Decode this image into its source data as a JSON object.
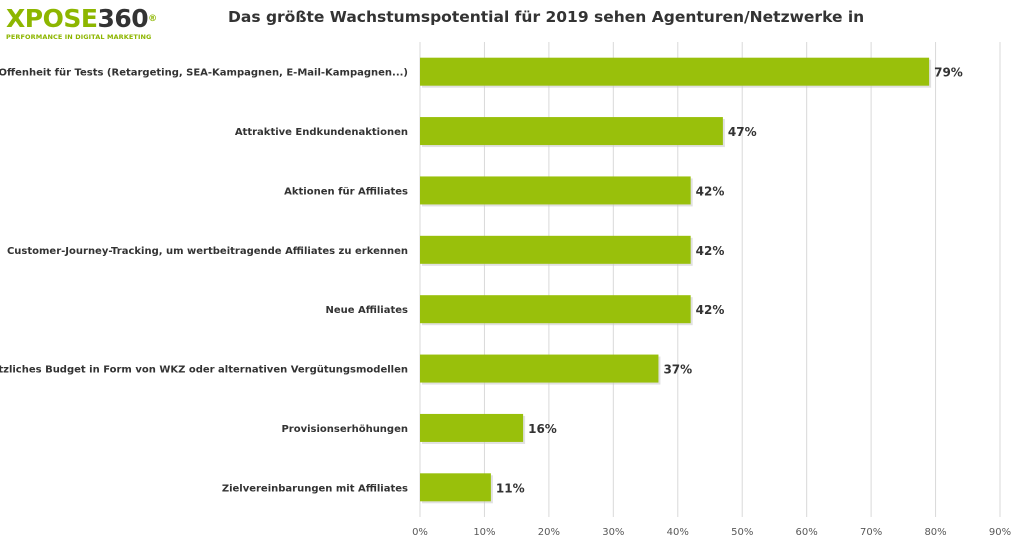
{
  "logo": {
    "brand_a": "XPOSE",
    "brand_b": "360",
    "registered": "®",
    "tagline": "PERFORMANCE IN DIGITAL MARKETING",
    "color_a": "#8db600",
    "color_b": "#333333"
  },
  "chart_data": {
    "type": "bar",
    "orientation": "horizontal",
    "title": "Das größte Wachstumspotential für 2019 sehen Agenturen/Netzwerke in",
    "categories": [
      "Mehr Offenheit für Tests (Retargeting, SEA-Kampagnen, E-Mail-Kampagnen...)",
      "Attraktive Endkundenaktionen",
      "Aktionen für Affiliates",
      "Customer-Journey-Tracking, um wertbeitragende Affiliates zu erkennen",
      "Neue Affiliates",
      "Zusätzliches Budget in Form von WKZ oder alternativen Vergütungsmodellen",
      "Provisionserhöhungen",
      "Zielvereinbarungen mit Affiliates"
    ],
    "values": [
      79,
      47,
      42,
      42,
      42,
      37,
      16,
      11
    ],
    "value_labels": [
      "79%",
      "47%",
      "42%",
      "42%",
      "42%",
      "37%",
      "16%",
      "11%"
    ],
    "xlim": [
      0,
      90
    ],
    "ticks": [
      0,
      10,
      20,
      30,
      40,
      50,
      60,
      70,
      80,
      90
    ],
    "tick_labels": [
      "0%",
      "10%",
      "20%",
      "30%",
      "40%",
      "50%",
      "60%",
      "70%",
      "80%",
      "90%"
    ],
    "grid": "vertical",
    "bar_color": "#99c00b",
    "legend": "none"
  }
}
